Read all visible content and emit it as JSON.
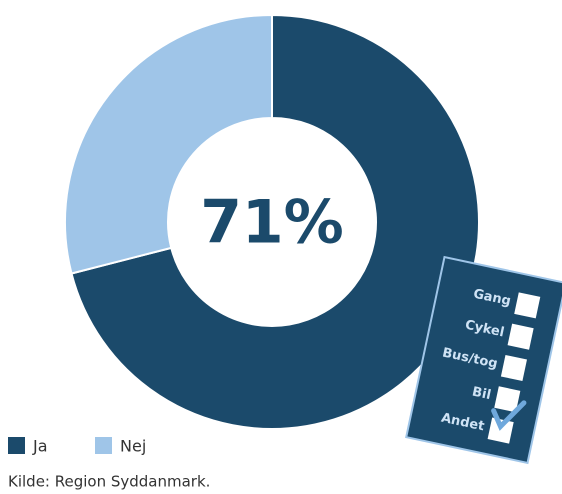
{
  "chart_data": {
    "type": "donut",
    "categories": [
      "Ja",
      "Nej"
    ],
    "values": [
      71,
      29
    ],
    "colors": [
      "#1b4a6b",
      "#9fc5e8"
    ],
    "center_label": "71%",
    "checklist": [
      "Gang",
      "Cykel",
      "Bus/tog",
      "Bil",
      "Andet"
    ],
    "source": "Kilde: Region Syddanmark."
  }
}
